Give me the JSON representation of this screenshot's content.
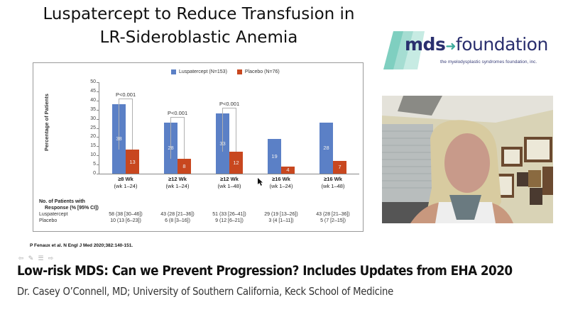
{
  "slide": {
    "title_line1": "Luspatercept to Reduce Transfusion in",
    "title_line2": "LR-Sideroblastic Anemia",
    "citation": "P Fenaux et al. N Engl J Med 2020;382:140-151."
  },
  "logo": {
    "brand_left": "mds",
    "brand_right": "foundation",
    "tagline": "the myelodysplastic syndromes foundation, inc."
  },
  "video": {
    "label": "presenter-webcam"
  },
  "controls": [
    {
      "name": "previous-icon",
      "glyph": "⇦"
    },
    {
      "name": "edit-icon",
      "glyph": "✎"
    },
    {
      "name": "notes-icon",
      "glyph": "☰"
    },
    {
      "name": "next-icon",
      "glyph": "⇨"
    }
  ],
  "talk": {
    "title": "Low-risk MDS: Can we Prevent Progression? Includes Updates from EHA 2020",
    "subtitle": "Dr. Casey O’Connell, MD; University of Southern California, Keck School of Medicine"
  },
  "colors": {
    "luspatercept": "#5b80c6",
    "placebo": "#c8471f"
  },
  "chart_data": {
    "type": "bar",
    "title": "",
    "xlabel": "",
    "ylabel": "Percentage of Patients",
    "ylim": [
      0,
      50
    ],
    "yticks": [
      0,
      5,
      10,
      15,
      20,
      25,
      30,
      35,
      40,
      45,
      50
    ],
    "grid": false,
    "legend_position": "top",
    "categories": [
      "≥8 Wk (wk 1–24)",
      "≥12 Wk (wk 1–24)",
      "≥12 Wk (wk 1–48)",
      "≥16 Wk (wk 1–24)",
      "≥16 Wk (wk 1–48)"
    ],
    "category_main": [
      "≥8 Wk",
      "≥12 Wk",
      "≥12 Wk",
      "≥16 Wk",
      "≥16 Wk"
    ],
    "category_sub": [
      "(wk 1–24)",
      "(wk 1–24)",
      "(wk 1–48)",
      "(wk 1–24)",
      "(wk 1–48)"
    ],
    "series": [
      {
        "name": "Luspatercept (N=153)",
        "values": [
          38,
          28,
          33,
          19,
          28
        ]
      },
      {
        "name": "Placebo (N=76)",
        "values": [
          13,
          8,
          12,
          4,
          7
        ]
      }
    ],
    "annotations": [
      "P<0.001",
      "P<0.001",
      "P<0.001"
    ],
    "table": {
      "header_line1": "No. of Patients with",
      "header_line2": "Response (% [95% CI])",
      "rows": [
        {
          "label": "Luspatercept",
          "cells": [
            "58 (38 [30–46])",
            "43 (28 [21–36])",
            "51 (33 [26–41])",
            "29 (19 [13–26])",
            "43 (28 [21–36])"
          ]
        },
        {
          "label": "Placebo",
          "cells": [
            "10 (13 [6–23])",
            "6 (8 [3–16])",
            "9 (12 [6–21])",
            "3 (4 [1–11])",
            "5 (7 [2–15])"
          ]
        }
      ]
    }
  }
}
